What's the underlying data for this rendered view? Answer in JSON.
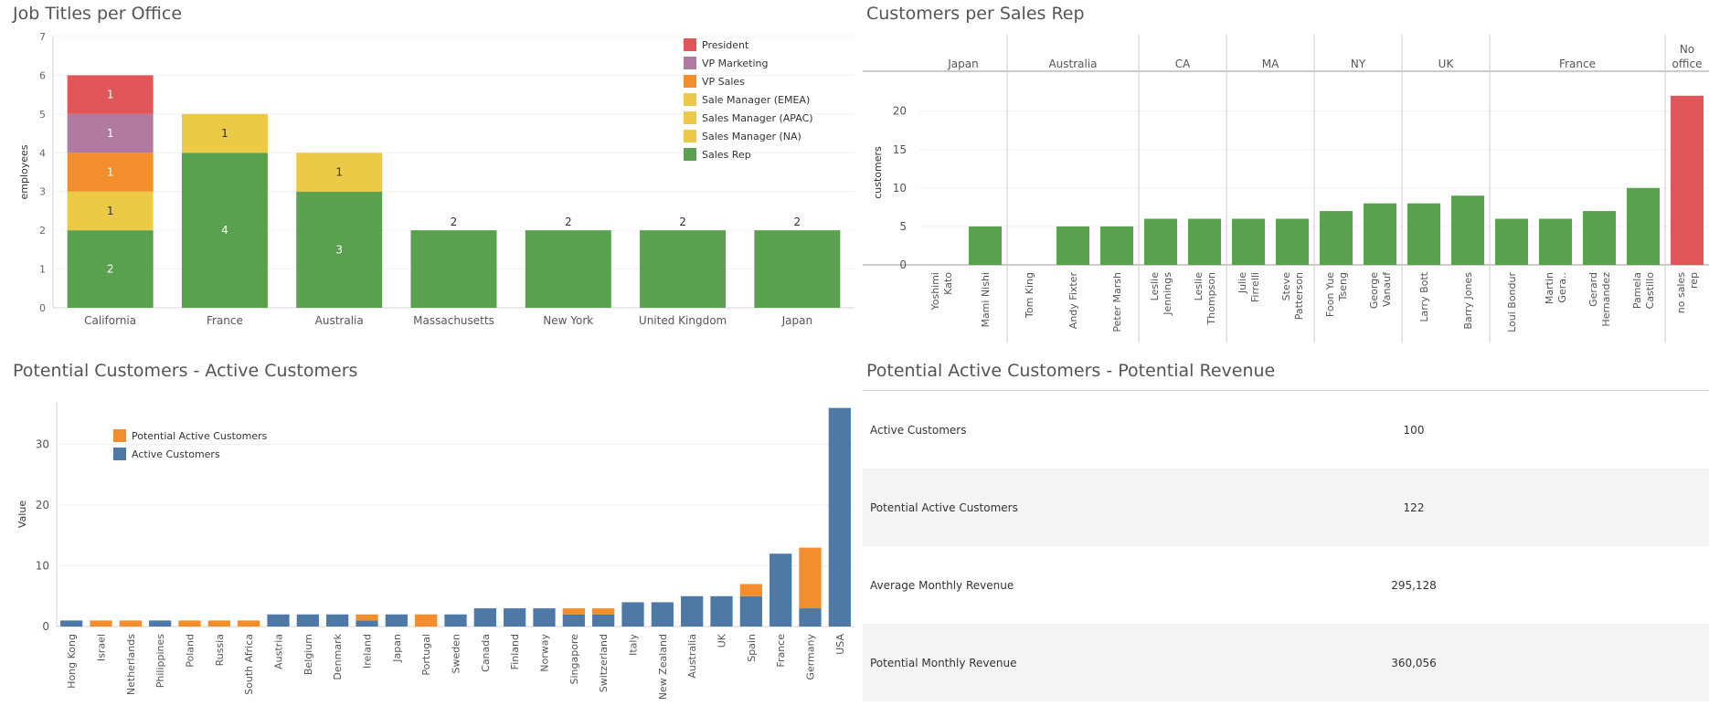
{
  "panels": {
    "job_titles": {
      "title": "Job Titles per Office"
    },
    "customers_rep": {
      "title": "Customers per Sales Rep"
    },
    "potential_active": {
      "title": "Potential Customers - Active Customers"
    },
    "revenue": {
      "title": "Potential Active Customers - Potential Revenue"
    }
  },
  "chart_data": [
    {
      "id": "job-titles",
      "type": "bar",
      "stacked": true,
      "title": "Job Titles per Office",
      "ylabel": "employees",
      "ylim": [
        0,
        7
      ],
      "yticks": [
        0,
        1,
        2,
        3,
        4,
        5,
        6,
        7
      ],
      "categories": [
        "California",
        "France",
        "Australia",
        "Massachusetts",
        "New York",
        "United Kingdom",
        "Japan"
      ],
      "series": [
        {
          "name": "Sales Rep",
          "color": "#59a14f",
          "values": [
            2,
            4,
            3,
            2,
            2,
            2,
            2
          ]
        },
        {
          "name": "Sales Manager (NA)",
          "color": "#edc948",
          "values": [
            1,
            0,
            0,
            0,
            0,
            0,
            0
          ]
        },
        {
          "name": "Sales Manager (APAC)",
          "color": "#edc948",
          "values": [
            0,
            0,
            1,
            0,
            0,
            0,
            0
          ]
        },
        {
          "name": "Sale Manager (EMEA)",
          "color": "#edc948",
          "values": [
            0,
            1,
            0,
            0,
            0,
            0,
            0
          ]
        },
        {
          "name": "VP Sales",
          "color": "#f28e2b",
          "values": [
            1,
            0,
            0,
            0,
            0,
            0,
            0
          ]
        },
        {
          "name": "VP Marketing",
          "color": "#b07aa1",
          "values": [
            1,
            0,
            0,
            0,
            0,
            0,
            0
          ]
        },
        {
          "name": "President",
          "color": "#e15759",
          "values": [
            1,
            0,
            0,
            0,
            0,
            0,
            0
          ]
        }
      ],
      "legend_order": [
        "President",
        "VP Marketing",
        "VP Sales",
        "Sale Manager (EMEA)",
        "Sales Manager (APAC)",
        "Sales Manager (NA)",
        "Sales Rep"
      ],
      "totals": [
        "",
        "",
        "",
        "2",
        "2",
        "2",
        "2"
      ],
      "legend_position": "top-right",
      "grid": true
    },
    {
      "id": "customers-rep",
      "type": "bar",
      "title": "Customers per Sales Rep",
      "ylabel": "customers",
      "ylim": [
        0,
        24
      ],
      "yticks": [
        0,
        5,
        10,
        15,
        20
      ],
      "groups": [
        {
          "name": "Japan",
          "reps": [
            {
              "name": "Yoshimi Kato",
              "value": 0
            },
            {
              "name": "Mami Nishi",
              "value": 5
            }
          ]
        },
        {
          "name": "Australia",
          "reps": [
            {
              "name": "Tom King",
              "value": 0
            },
            {
              "name": "Andy Fixter",
              "value": 5
            },
            {
              "name": "Peter Marsh",
              "value": 5
            }
          ]
        },
        {
          "name": "CA",
          "reps": [
            {
              "name": "Leslie Jennings",
              "value": 6
            },
            {
              "name": "Leslie Thompson",
              "value": 6
            }
          ]
        },
        {
          "name": "MA",
          "reps": [
            {
              "name": "Julie Firrelli",
              "value": 6
            },
            {
              "name": "Steve Patterson",
              "value": 6
            }
          ]
        },
        {
          "name": "NY",
          "reps": [
            {
              "name": "Foon Yue Tseng",
              "value": 7
            },
            {
              "name": "George Vanauf",
              "value": 8
            }
          ]
        },
        {
          "name": "UK",
          "reps": [
            {
              "name": "Larry Bott",
              "value": 8
            },
            {
              "name": "Barry Jones",
              "value": 9
            }
          ]
        },
        {
          "name": "France",
          "reps": [
            {
              "name": "Loui Bondur",
              "value": 6
            },
            {
              "name": "Martin Gera..",
              "value": 6
            },
            {
              "name": "Gerard Hernandez",
              "value": 7
            },
            {
              "name": "Pamela Castillo",
              "value": 10
            }
          ]
        },
        {
          "name": "No office",
          "reps": [
            {
              "name": "no sales rep",
              "value": 22
            }
          ]
        }
      ],
      "colors": {
        "rep": "#59a14f",
        "no_rep": "#e15759"
      },
      "grid": true
    },
    {
      "id": "potential-active",
      "type": "bar",
      "stacked": true,
      "title": "Potential Customers - Active Customers",
      "ylabel": "Value",
      "ylim": [
        0,
        37
      ],
      "yticks": [
        0,
        10,
        20,
        30
      ],
      "categories": [
        "Hong Kong",
        "Israel",
        "Netherlands",
        "Philippines",
        "Poland",
        "Russia",
        "South Africa",
        "Austria",
        "Belgium",
        "Denmark",
        "Ireland",
        "Japan",
        "Portugal",
        "Sweden",
        "Canada",
        "Finland",
        "Norway",
        "Singapore",
        "Switzerland",
        "Italy",
        "New Zealand",
        "Australia",
        "UK",
        "Spain",
        "France",
        "Germany",
        "USA"
      ],
      "series": [
        {
          "name": "Active Customers",
          "color": "#4e79a7",
          "values": [
            1,
            0,
            0,
            1,
            0,
            0,
            0,
            2,
            2,
            2,
            1,
            2,
            0,
            2,
            3,
            3,
            3,
            2,
            2,
            4,
            4,
            5,
            5,
            5,
            12,
            3,
            36
          ]
        },
        {
          "name": "Potential Active Customers",
          "color": "#f28e2b",
          "values": [
            0,
            1,
            1,
            0,
            1,
            1,
            1,
            0,
            0,
            0,
            1,
            0,
            2,
            0,
            0,
            0,
            0,
            1,
            1,
            0,
            0,
            0,
            0,
            2,
            0,
            10,
            0
          ]
        }
      ],
      "legend_order": [
        "Potential Active Customers",
        "Active Customers"
      ],
      "legend_position": "top-left",
      "grid": true
    }
  ],
  "kpi": {
    "rows": [
      {
        "label": "Active Customers",
        "value": "100"
      },
      {
        "label": "Potential Active Customers",
        "value": "122"
      },
      {
        "label": "Average Monthly Revenue",
        "value": "295,128"
      },
      {
        "label": "Potential Monthly Revenue",
        "value": "360,056"
      }
    ]
  }
}
